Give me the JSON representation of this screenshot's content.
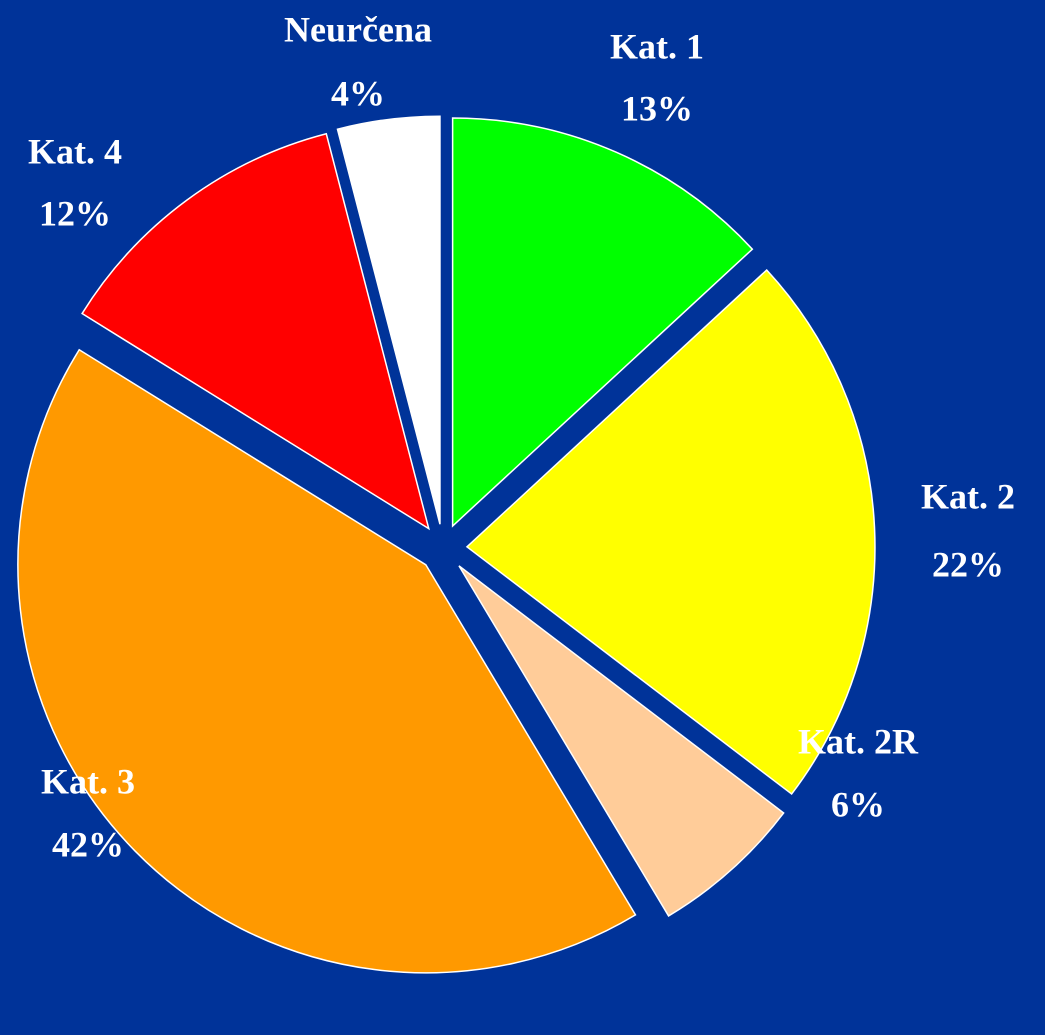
{
  "chart_data": {
    "type": "pie",
    "categories": [
      "Kat. 1",
      "Kat. 2",
      "Kat. 2R",
      "Kat. 3",
      "Kat. 4",
      "Neurčena"
    ],
    "values": [
      13,
      22,
      6,
      42,
      12,
      4
    ],
    "value_labels": [
      "13%",
      "22%",
      "6%",
      "42%",
      "12%",
      "4%"
    ],
    "colors": [
      "#00ff00",
      "#ffff00",
      "#ffcc99",
      "#ff9900",
      "#ff0000",
      "#ffffff"
    ]
  }
}
